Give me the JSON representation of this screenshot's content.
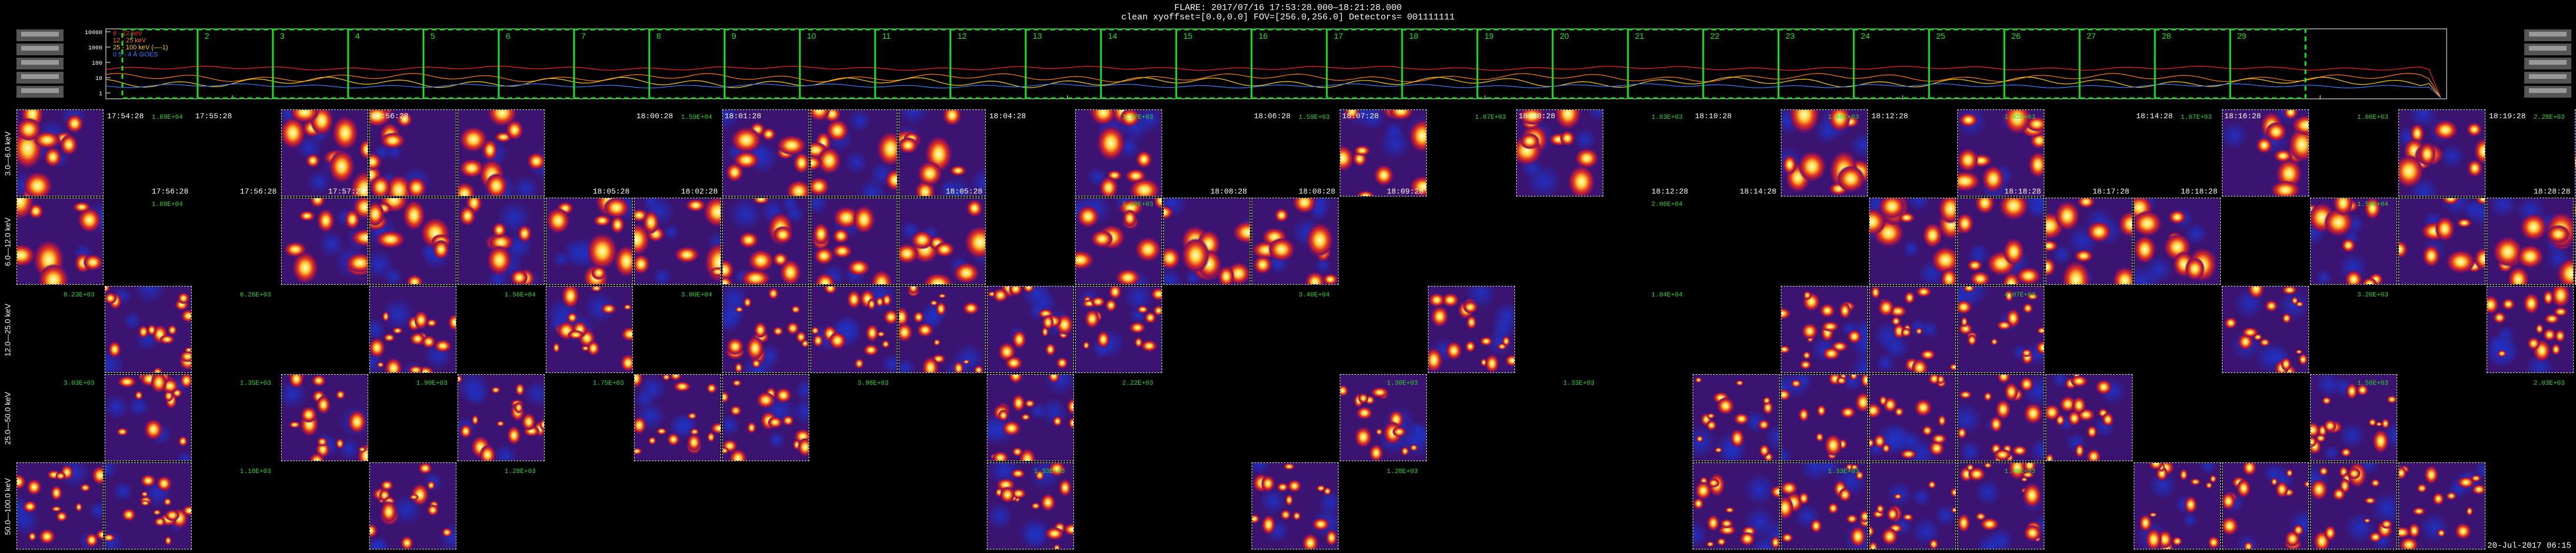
{
  "header": {
    "line1": "FLARE: 2017/07/16 17:53:28.000—18:21:28.000",
    "line2": "clean   xyoffset=[0.0,0.0]   FOV=[256.0,256.0]   Detectors= 001111111"
  },
  "lightcurve": {
    "legend": [
      {
        "label": "6 - 12 keV",
        "color": "#ff2020"
      },
      {
        "label": "12 - 25 keV",
        "color": "#ff7a00"
      },
      {
        "label": "25 - 100 keV  (—-1)",
        "color": "#ffd000"
      },
      {
        "label": "0.5 - 4 Å  GOES",
        "color": "#3a7bff"
      }
    ],
    "yticks": [
      "10000",
      "1000",
      "100",
      "10",
      "1"
    ],
    "interval_numbers": [
      "1",
      "2",
      "3",
      "4",
      "5",
      "6",
      "7",
      "8",
      "9",
      "10",
      "11",
      "12",
      "13",
      "14",
      "15",
      "16",
      "17",
      "18",
      "19",
      "20",
      "21",
      "22",
      "23",
      "24",
      "25",
      "26",
      "27",
      "28",
      "29"
    ],
    "time_ticks": [
      "17:55",
      "18:00",
      "18:05",
      "18:10",
      "18:15",
      "18:20"
    ]
  },
  "row_labels": [
    "3.0—6.0 keV",
    "6.0—12.0 keV",
    "12.0—25.0 keV",
    "25.0—50.0 keV",
    "50.0—100.0 keV"
  ],
  "time_labels": {
    "row0": [
      "17:54:28",
      "17:55:28",
      "17:56:28",
      "18:00:28",
      "18:01:28",
      "18:04:28",
      "18:06:28",
      "18:07:28",
      "18:08:28",
      "18:10:28",
      "18:12:28",
      "18:14:28",
      "18:16:28",
      "18:19:28",
      "18:21:28"
    ],
    "row1": [
      "17:56:28",
      "17:56:28",
      "17:57:28",
      "18:05:28",
      "18:02:28",
      "18:05:28",
      "18:08:28",
      "18:08:28",
      "18:09:28",
      "18:12:28",
      "18:14:28",
      "18:18:28",
      "18:17:28",
      "18:18:28",
      "18:28:28"
    ]
  },
  "max_labels": {
    "row0": [
      "1.69E+04",
      "1.59E+04",
      "1.37E+03",
      "1.59E+03",
      "1.67E+03",
      "1.63E+03",
      "1.60E+03",
      "1.62E+03",
      "1.67E+03",
      "1.60E+03",
      "2.28E+03"
    ],
    "row1": [
      "1.69E+04",
      "3.29E+03",
      "2.06E+04",
      "1.59E+04"
    ],
    "row2": [
      "8.23E+03",
      "6.26E+03",
      "1.56E+04",
      "3.00E+04",
      "3.40E+04",
      "1.04E+04",
      "4.07E+03",
      "3.20E+03"
    ],
    "row3": [
      "3.03E+03",
      "1.35E+03",
      "1.99E+03",
      "1.75E+03",
      "3.98E+03",
      "2.22E+03",
      "1.38E+03",
      "1.33E+03",
      "1.50E+03",
      "2.03E+03"
    ],
    "row4": [
      "1.16E+03",
      "1.28E+03",
      "1.33E+03",
      "1.28E+03",
      "1.33E+03",
      "1.48E+03",
      "3.67E+03"
    ]
  },
  "footer": {
    "date": "20-Jul-2017 06:15"
  }
}
